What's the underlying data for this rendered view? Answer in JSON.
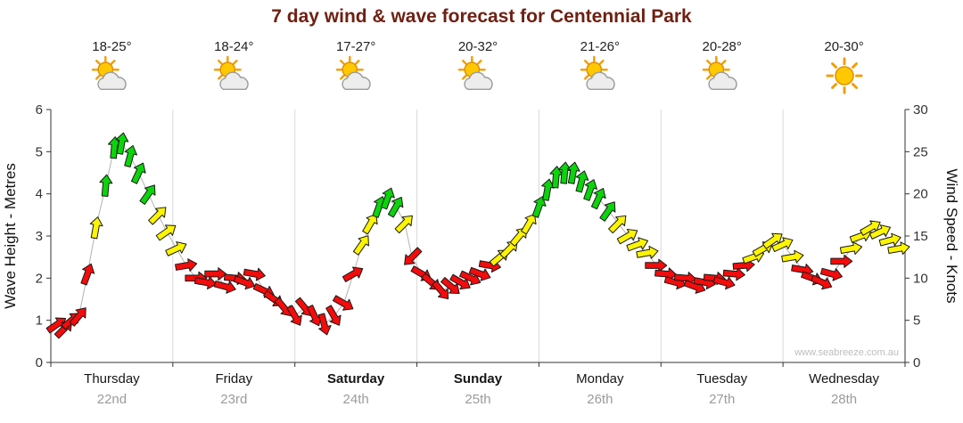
{
  "watermark": "www.seabreeze.com.au",
  "days": [
    {
      "name": "Thursday",
      "date": "22nd",
      "temp": "18-25°",
      "icon": "sun-cloud",
      "bold": false
    },
    {
      "name": "Friday",
      "date": "23rd",
      "temp": "18-24°",
      "icon": "sun-cloud",
      "bold": false
    },
    {
      "name": "Saturday",
      "date": "24th",
      "temp": "17-27°",
      "icon": "sun-cloud",
      "bold": true
    },
    {
      "name": "Sunday",
      "date": "25th",
      "temp": "20-32°",
      "icon": "sun-cloud",
      "bold": true
    },
    {
      "name": "Monday",
      "date": "26th",
      "temp": "21-26°",
      "icon": "sun-cloud",
      "bold": false
    },
    {
      "name": "Tuesday",
      "date": "27th",
      "temp": "20-28°",
      "icon": "sun-cloud",
      "bold": false
    },
    {
      "name": "Wednesday",
      "date": "28th",
      "temp": "20-30°",
      "icon": "sun",
      "bold": false
    }
  ],
  "chart_data": {
    "type": "line",
    "title": "7 day wind & wave forecast for Centennial Park",
    "y_left": {
      "label": "Wave Height - Metres",
      "ticks": [
        0,
        1,
        2,
        3,
        4,
        5,
        6
      ],
      "range": [
        0,
        6
      ]
    },
    "y_right": {
      "label": "Wind Speed - Knots",
      "ticks": [
        0,
        5,
        10,
        15,
        20,
        25,
        30
      ],
      "range": [
        0,
        30
      ]
    },
    "x_range_days": [
      0,
      7
    ],
    "dual_axis_note": "wave height in metres = wind knots / 5 (axes are linked)",
    "arrow_colors": {
      "red": "#f40b0b",
      "yellow": "#fdf500",
      "green": "#0ad50a"
    },
    "point_format": [
      "day_fraction",
      "wind_knots",
      "direction_deg_cw_from_up",
      "color"
    ],
    "points": [
      [
        0.05,
        4.5,
        55,
        "red"
      ],
      [
        0.11,
        4.0,
        45,
        "red"
      ],
      [
        0.17,
        5.0,
        50,
        "red"
      ],
      [
        0.23,
        5.5,
        40,
        "red"
      ],
      [
        0.3,
        10.5,
        20,
        "red"
      ],
      [
        0.37,
        16.0,
        10,
        "yellow"
      ],
      [
        0.45,
        21.0,
        5,
        "green"
      ],
      [
        0.52,
        25.5,
        5,
        "green"
      ],
      [
        0.58,
        26.0,
        10,
        "green"
      ],
      [
        0.65,
        24.5,
        15,
        "green"
      ],
      [
        0.72,
        22.5,
        25,
        "green"
      ],
      [
        0.8,
        20.0,
        35,
        "green"
      ],
      [
        0.88,
        17.5,
        45,
        "yellow"
      ],
      [
        0.95,
        15.5,
        55,
        "yellow"
      ],
      [
        1.03,
        13.5,
        65,
        "yellow"
      ],
      [
        1.11,
        11.5,
        80,
        "red"
      ],
      [
        1.19,
        10.0,
        90,
        "red"
      ],
      [
        1.27,
        9.5,
        100,
        "red"
      ],
      [
        1.35,
        10.5,
        90,
        "red"
      ],
      [
        1.43,
        9.0,
        105,
        "red"
      ],
      [
        1.51,
        10.0,
        95,
        "red"
      ],
      [
        1.59,
        9.5,
        110,
        "red"
      ],
      [
        1.67,
        10.5,
        100,
        "red"
      ],
      [
        1.75,
        8.5,
        115,
        "red"
      ],
      [
        1.83,
        7.5,
        125,
        "red"
      ],
      [
        1.91,
        6.5,
        140,
        "red"
      ],
      [
        2.0,
        5.5,
        150,
        "red"
      ],
      [
        2.08,
        6.5,
        140,
        "red"
      ],
      [
        2.16,
        5.5,
        155,
        "red"
      ],
      [
        2.24,
        4.5,
        165,
        "red"
      ],
      [
        2.32,
        5.5,
        150,
        "red"
      ],
      [
        2.4,
        7.0,
        120,
        "red"
      ],
      [
        2.48,
        10.5,
        60,
        "red"
      ],
      [
        2.55,
        14.0,
        35,
        "yellow"
      ],
      [
        2.62,
        16.5,
        30,
        "yellow"
      ],
      [
        2.69,
        18.5,
        20,
        "green"
      ],
      [
        2.76,
        19.5,
        20,
        "green"
      ],
      [
        2.83,
        18.5,
        30,
        "green"
      ],
      [
        2.9,
        16.5,
        45,
        "yellow"
      ],
      [
        2.96,
        12.5,
        225,
        "red"
      ],
      [
        3.04,
        10.5,
        120,
        "red"
      ],
      [
        3.12,
        9.5,
        130,
        "red"
      ],
      [
        3.2,
        8.5,
        140,
        "red"
      ],
      [
        3.28,
        9.0,
        130,
        "red"
      ],
      [
        3.36,
        9.5,
        120,
        "red"
      ],
      [
        3.44,
        10.0,
        115,
        "red"
      ],
      [
        3.52,
        10.5,
        110,
        "red"
      ],
      [
        3.6,
        11.5,
        100,
        "red"
      ],
      [
        3.68,
        12.5,
        50,
        "yellow"
      ],
      [
        3.76,
        13.5,
        45,
        "yellow"
      ],
      [
        3.84,
        15.0,
        40,
        "yellow"
      ],
      [
        3.92,
        16.5,
        30,
        "yellow"
      ],
      [
        4.0,
        18.5,
        20,
        "green"
      ],
      [
        4.07,
        20.5,
        10,
        "green"
      ],
      [
        4.14,
        22.0,
        5,
        "green"
      ],
      [
        4.21,
        22.5,
        5,
        "green"
      ],
      [
        4.28,
        22.5,
        10,
        "green"
      ],
      [
        4.35,
        21.5,
        15,
        "green"
      ],
      [
        4.42,
        20.5,
        20,
        "green"
      ],
      [
        4.49,
        19.5,
        25,
        "green"
      ],
      [
        4.57,
        18.0,
        35,
        "green"
      ],
      [
        4.65,
        16.5,
        45,
        "yellow"
      ],
      [
        4.73,
        15.0,
        60,
        "yellow"
      ],
      [
        4.81,
        14.0,
        70,
        "yellow"
      ],
      [
        4.89,
        13.0,
        80,
        "yellow"
      ],
      [
        4.96,
        11.5,
        90,
        "red"
      ],
      [
        5.04,
        10.5,
        95,
        "red"
      ],
      [
        5.12,
        9.5,
        105,
        "red"
      ],
      [
        5.2,
        10.0,
        95,
        "red"
      ],
      [
        5.28,
        9.0,
        110,
        "red"
      ],
      [
        5.36,
        9.5,
        100,
        "red"
      ],
      [
        5.44,
        10.0,
        95,
        "red"
      ],
      [
        5.52,
        9.5,
        105,
        "red"
      ],
      [
        5.6,
        10.5,
        95,
        "red"
      ],
      [
        5.68,
        11.5,
        85,
        "red"
      ],
      [
        5.76,
        12.5,
        70,
        "yellow"
      ],
      [
        5.84,
        13.5,
        60,
        "yellow"
      ],
      [
        5.92,
        14.5,
        55,
        "yellow"
      ],
      [
        6.0,
        14.0,
        65,
        "yellow"
      ],
      [
        6.08,
        12.5,
        80,
        "yellow"
      ],
      [
        6.16,
        11.0,
        100,
        "red"
      ],
      [
        6.24,
        10.0,
        110,
        "red"
      ],
      [
        6.32,
        9.5,
        115,
        "red"
      ],
      [
        6.4,
        10.5,
        105,
        "red"
      ],
      [
        6.48,
        12.0,
        90,
        "red"
      ],
      [
        6.56,
        13.5,
        80,
        "yellow"
      ],
      [
        6.64,
        15.0,
        70,
        "yellow"
      ],
      [
        6.72,
        16.0,
        60,
        "yellow"
      ],
      [
        6.8,
        15.5,
        65,
        "yellow"
      ],
      [
        6.88,
        14.5,
        75,
        "yellow"
      ],
      [
        6.95,
        13.5,
        80,
        "yellow"
      ]
    ]
  }
}
